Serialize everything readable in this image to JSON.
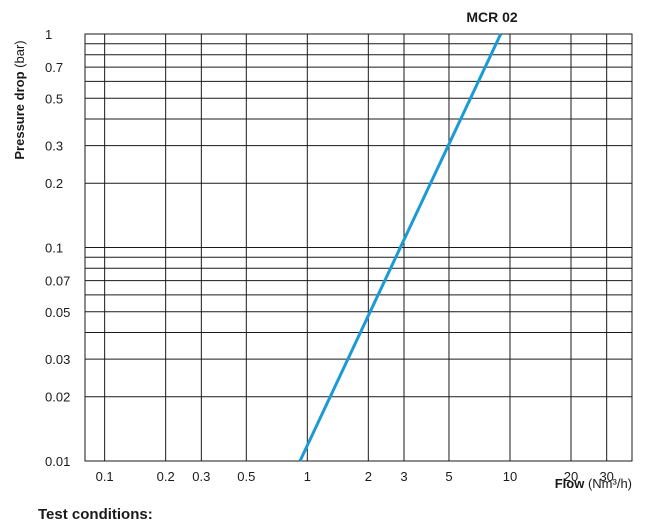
{
  "chart_data": {
    "type": "line",
    "title": "MCR 02",
    "xlabel_bold": "Flow",
    "xlabel_unit": "(Nm³/h)",
    "ylabel_bold": "Pressure drop",
    "ylabel_unit": "(bar)",
    "x_scale": "log",
    "y_scale": "log",
    "xlim": [
      0.08,
      40
    ],
    "ylim": [
      0.01,
      1
    ],
    "x_ticks": [
      0.1,
      0.2,
      0.3,
      0.5,
      1,
      2,
      3,
      5,
      10,
      20,
      30
    ],
    "x_tick_labels": [
      "0.1",
      "0.2",
      "0.3",
      "0.5",
      "1",
      "2",
      "3",
      "5",
      "10",
      "20",
      "30"
    ],
    "y_ticks": [
      0.01,
      0.02,
      0.03,
      0.05,
      0.07,
      0.1,
      0.2,
      0.3,
      0.5,
      0.7,
      1
    ],
    "y_tick_labels": [
      "0.01",
      "0.02",
      "0.03",
      "0.05",
      "0.07",
      "0.1",
      "0.2",
      "0.3",
      "0.5",
      "0.7",
      "1"
    ],
    "grid": true,
    "series": [
      {
        "color": "#1a9ad6",
        "x": [
          0.92,
          9.0
        ],
        "y": [
          0.01,
          1
        ]
      }
    ]
  },
  "footer": {
    "text": "Test conditions:"
  }
}
